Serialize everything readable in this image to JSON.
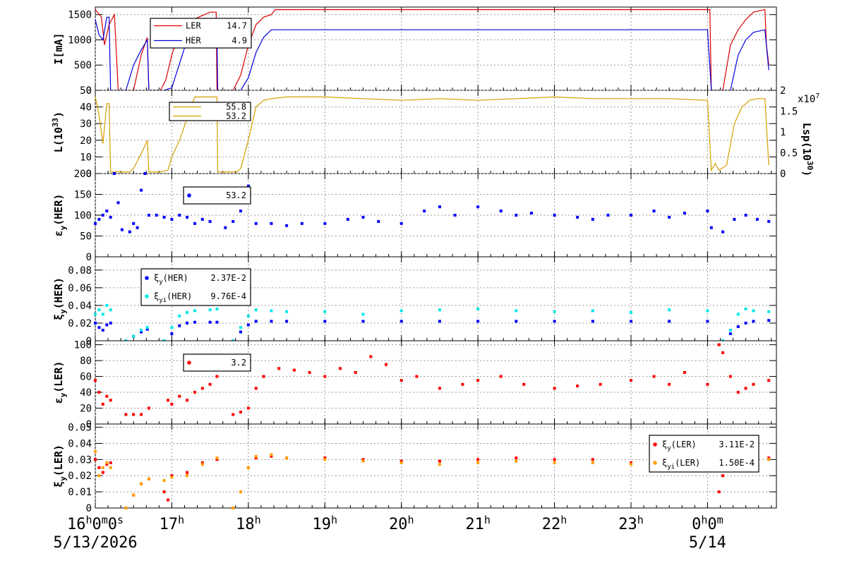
{
  "chart_data": [
    {
      "type": "line",
      "ylabel": "I[mA]",
      "ylim": [
        0,
        1650
      ],
      "yticks": [
        "0",
        "500",
        "1000",
        "1500"
      ],
      "ytick_values": [
        0,
        500,
        1000,
        1500
      ],
      "legend": [
        {
          "name": "LER",
          "value": "14.7",
          "color": "#dd0000"
        },
        {
          "name": "HER",
          "value": "4.9",
          "color": "#0000dd"
        }
      ],
      "series": [
        {
          "name": "LER",
          "color": "#dd0000",
          "x": [
            16.0,
            16.08,
            16.12,
            16.18,
            16.25,
            16.3,
            16.5,
            16.6,
            16.68,
            16.7,
            16.85,
            16.92,
            17.0,
            17.1,
            17.2,
            17.35,
            17.5,
            17.58,
            17.59,
            17.6,
            17.8,
            17.9,
            18.0,
            18.1,
            18.2,
            18.3,
            18.35,
            19.0,
            20.0,
            21.0,
            22.0,
            23.0,
            24.0,
            24.03,
            24.05,
            24.2,
            24.3,
            24.4,
            24.5,
            24.6,
            24.75,
            24.77,
            24.8
          ],
          "y": [
            1600,
            1450,
            900,
            1300,
            1500,
            0,
            0,
            700,
            1050,
            0,
            0,
            200,
            700,
            1150,
            1350,
            1450,
            1550,
            1550,
            0,
            0,
            0,
            300,
            900,
            1300,
            1450,
            1500,
            1600,
            1600,
            1600,
            1600,
            1600,
            1600,
            1600,
            1600,
            0,
            0,
            900,
            1200,
            1400,
            1550,
            1600,
            900,
            500
          ]
        },
        {
          "name": "HER",
          "color": "#0000dd",
          "x": [
            16.0,
            16.05,
            16.1,
            16.15,
            16.18,
            16.2,
            16.4,
            16.5,
            16.6,
            16.68,
            16.7,
            16.9,
            17.0,
            17.2,
            17.5,
            17.59,
            17.6,
            17.9,
            18.0,
            18.1,
            18.2,
            18.3,
            19.0,
            20.0,
            21.0,
            22.0,
            23.0,
            24.0,
            24.05,
            24.3,
            24.4,
            24.5,
            24.6,
            24.75,
            24.8
          ],
          "y": [
            1400,
            1100,
            1000,
            1450,
            1450,
            0,
            0,
            500,
            800,
            1000,
            0,
            0,
            50,
            1000,
            1100,
            1100,
            0,
            0,
            250,
            750,
            1050,
            1200,
            1200,
            1200,
            1200,
            1200,
            1200,
            1200,
            0,
            0,
            700,
            1000,
            1150,
            1200,
            400
          ]
        }
      ]
    },
    {
      "type": "line",
      "ylabel": "L(10",
      "ylabel_sup": "33",
      "ylabel_end": ")",
      "ylim": [
        0,
        50
      ],
      "yticks": [
        "0",
        "10",
        "20",
        "30",
        "40",
        "50"
      ],
      "ytick_values": [
        0,
        10,
        20,
        30,
        40,
        50
      ],
      "y2label": "Lsp(10",
      "y2label_sup": "30",
      "y2label_end": ")",
      "y2ticks": [
        "0",
        "0.5",
        "1",
        "1.5",
        "2"
      ],
      "y2tick_values": [
        0,
        0.5,
        1,
        1.5,
        2
      ],
      "y2_exponent": "x10",
      "y2_exponent_sup": "7",
      "legend": [
        {
          "name": "",
          "value": "55.8",
          "color": "#d4a000"
        },
        {
          "name": "",
          "value": "53.2",
          "color": "#d4a000"
        }
      ],
      "series": [
        {
          "name": "",
          "color": "#d4a000",
          "x": [
            16.0,
            16.05,
            16.1,
            16.15,
            16.18,
            16.2,
            16.45,
            16.5,
            16.6,
            16.68,
            16.7,
            16.85,
            16.95,
            17.0,
            17.1,
            17.2,
            17.3,
            17.5,
            17.59,
            17.6,
            17.85,
            17.9,
            18.0,
            18.1,
            18.2,
            18.3,
            18.5,
            19.0,
            19.5,
            20.0,
            20.5,
            21.0,
            21.5,
            22.0,
            22.5,
            23.0,
            23.5,
            24.0,
            24.05,
            24.1,
            24.15,
            24.25,
            24.35,
            24.45,
            24.55,
            24.65,
            24.75,
            24.8
          ],
          "y": [
            46,
            35,
            18,
            42,
            42,
            1,
            1,
            3,
            12,
            20,
            1,
            1,
            2,
            10,
            20,
            33,
            46,
            46,
            46,
            1,
            1,
            3,
            20,
            40,
            44,
            45,
            46,
            46,
            45,
            44,
            45,
            44,
            45,
            46,
            45,
            45,
            45,
            44,
            2,
            6,
            2,
            5,
            30,
            40,
            44,
            45,
            45,
            5
          ]
        }
      ]
    },
    {
      "type": "scatter",
      "ylabel": "ε",
      "ylabel_sub": "y",
      "ylabel_end": "(HER)",
      "ylim": [
        0,
        200
      ],
      "yticks": [
        "0",
        "50",
        "100",
        "150",
        "200"
      ],
      "ytick_values": [
        0,
        50,
        100,
        150,
        200
      ],
      "legend": [
        {
          "name": "",
          "value": "53.2",
          "color": "#0000ff"
        }
      ],
      "series": [
        {
          "name": "",
          "color": "#0000ff",
          "x": [
            16.0,
            16.05,
            16.1,
            16.15,
            16.2,
            16.25,
            16.3,
            16.35,
            16.45,
            16.5,
            16.55,
            16.6,
            16.65,
            16.7,
            16.8,
            16.9,
            17.0,
            17.1,
            17.2,
            17.3,
            17.4,
            17.5,
            17.7,
            17.8,
            17.9,
            18.0,
            18.1,
            18.3,
            18.5,
            18.7,
            19.0,
            19.3,
            19.5,
            19.7,
            20.0,
            20.3,
            20.5,
            20.7,
            21.0,
            21.3,
            21.5,
            21.7,
            22.0,
            22.3,
            22.5,
            22.7,
            23.0,
            23.3,
            23.5,
            23.7,
            24.0,
            24.05,
            24.2,
            24.35,
            24.5,
            24.65,
            24.8
          ],
          "y": [
            80,
            90,
            100,
            110,
            95,
            200,
            130,
            65,
            60,
            80,
            70,
            160,
            200,
            100,
            100,
            95,
            90,
            100,
            95,
            80,
            90,
            85,
            70,
            85,
            110,
            170,
            80,
            80,
            75,
            80,
            80,
            90,
            95,
            85,
            80,
            110,
            120,
            100,
            120,
            110,
            100,
            105,
            100,
            95,
            90,
            100,
            100,
            110,
            95,
            105,
            110,
            70,
            60,
            90,
            100,
            90,
            85
          ]
        }
      ]
    },
    {
      "type": "scatter",
      "ylabel": "ξ",
      "ylabel_sub": "y",
      "ylabel_end": "(HER)",
      "ylim": [
        0,
        0.095
      ],
      "yticks": [
        "0",
        "0.02",
        "0.04",
        "0.06",
        "0.08"
      ],
      "ytick_values": [
        0,
        0.02,
        0.04,
        0.06,
        0.08
      ],
      "legend": [
        {
          "name": "ξ",
          "name_sub": "y",
          "name_end": "(HER)",
          "value": "2.37E-2",
          "color": "#0000ff"
        },
        {
          "name": "ξ",
          "name_sub": "yi",
          "name_end": "(HER)",
          "value": "9.76E-4",
          "color": "#00e8e8"
        }
      ],
      "series": [
        {
          "name": "ξy(HER)",
          "color": "#0000ff",
          "x": [
            16.0,
            16.05,
            16.1,
            16.15,
            16.2,
            16.4,
            16.5,
            16.6,
            16.68,
            16.9,
            17.0,
            17.1,
            17.2,
            17.3,
            17.5,
            17.59,
            17.8,
            17.9,
            18.0,
            18.1,
            18.3,
            18.5,
            19.0,
            19.5,
            20.0,
            20.5,
            21.0,
            21.5,
            22.0,
            22.5,
            23.0,
            23.5,
            24.0,
            24.2,
            24.3,
            24.4,
            24.5,
            24.6,
            24.8
          ],
          "y": [
            0.02,
            0.015,
            0.012,
            0.018,
            0.02,
            0.0,
            0.005,
            0.01,
            0.013,
            0.0,
            0.008,
            0.017,
            0.02,
            0.021,
            0.021,
            0.021,
            0.0,
            0.01,
            0.018,
            0.022,
            0.022,
            0.022,
            0.022,
            0.022,
            0.022,
            0.022,
            0.022,
            0.022,
            0.022,
            0.022,
            0.022,
            0.022,
            0.022,
            0.0,
            0.008,
            0.016,
            0.02,
            0.022,
            0.023
          ]
        },
        {
          "name": "ξyi(HER)",
          "color": "#00e8e8",
          "x": [
            16.0,
            16.05,
            16.1,
            16.15,
            16.2,
            16.4,
            16.5,
            16.6,
            16.68,
            16.9,
            17.0,
            17.1,
            17.2,
            17.3,
            17.5,
            17.59,
            17.8,
            17.9,
            18.0,
            18.1,
            18.3,
            18.5,
            19.0,
            19.5,
            20.0,
            20.5,
            21.0,
            21.5,
            22.0,
            22.5,
            23.0,
            23.5,
            24.0,
            24.2,
            24.3,
            24.4,
            24.5,
            24.6,
            24.8
          ],
          "y": [
            0.03,
            0.035,
            0.03,
            0.04,
            0.035,
            0.0,
            0.005,
            0.012,
            0.015,
            0.0,
            0.015,
            0.028,
            0.032,
            0.034,
            0.035,
            0.036,
            0.0,
            0.015,
            0.028,
            0.035,
            0.034,
            0.033,
            0.033,
            0.03,
            0.034,
            0.035,
            0.036,
            0.034,
            0.033,
            0.034,
            0.032,
            0.035,
            0.034,
            0.0,
            0.012,
            0.03,
            0.036,
            0.034,
            0.033
          ]
        }
      ]
    },
    {
      "type": "scatter",
      "ylabel": "ε",
      "ylabel_sub": "y",
      "ylabel_end": "(LER)",
      "ylim": [
        0,
        105
      ],
      "yticks": [
        "0",
        "20",
        "40",
        "60",
        "80",
        "100"
      ],
      "ytick_values": [
        0,
        20,
        40,
        60,
        80,
        100
      ],
      "legend": [
        {
          "name": "",
          "value": "3.2",
          "color": "#ff0000"
        }
      ],
      "series": [
        {
          "name": "",
          "color": "#ff0000",
          "x": [
            16.0,
            16.05,
            16.1,
            16.15,
            16.2,
            16.4,
            16.5,
            16.6,
            16.7,
            16.95,
            17.0,
            17.1,
            17.2,
            17.3,
            17.4,
            17.5,
            17.59,
            17.8,
            17.9,
            18.0,
            18.1,
            18.2,
            18.4,
            18.6,
            18.8,
            19.0,
            19.2,
            19.4,
            19.6,
            19.8,
            20.0,
            20.2,
            20.5,
            20.8,
            21.0,
            21.3,
            21.6,
            22.0,
            22.3,
            22.6,
            23.0,
            23.3,
            23.5,
            23.7,
            24.0,
            24.15,
            24.2,
            24.3,
            24.4,
            24.5,
            24.6,
            24.8
          ],
          "y": [
            55,
            40,
            25,
            35,
            30,
            12,
            12,
            12,
            20,
            30,
            25,
            35,
            30,
            40,
            45,
            50,
            60,
            12,
            15,
            20,
            45,
            60,
            70,
            68,
            65,
            60,
            70,
            65,
            85,
            75,
            55,
            60,
            45,
            50,
            55,
            60,
            50,
            45,
            48,
            50,
            55,
            60,
            50,
            65,
            50,
            100,
            90,
            60,
            40,
            45,
            50,
            55
          ]
        }
      ]
    },
    {
      "type": "scatter",
      "ylabel": "ξ",
      "ylabel_sub": "y",
      "ylabel_end": "(LER)",
      "ylim": [
        0,
        0.052
      ],
      "yticks": [
        "0",
        "0.01",
        "0.02",
        "0.03",
        "0.04",
        "0.05"
      ],
      "ytick_values": [
        0,
        0.01,
        0.02,
        0.03,
        0.04,
        0.05
      ],
      "legend": [
        {
          "name": "ξ",
          "name_sub": "y",
          "name_end": "(LER)",
          "value": "3.11E-2",
          "color": "#ff0000"
        },
        {
          "name": "ξ",
          "name_sub": "yi",
          "name_end": "(LER)",
          "value": "1.50E-4",
          "color": "#ffa000"
        }
      ],
      "series": [
        {
          "name": "ξy(LER)",
          "color": "#ff0000",
          "x": [
            16.0,
            16.05,
            16.1,
            16.15,
            16.2,
            16.4,
            16.5,
            16.6,
            16.7,
            16.9,
            16.95,
            17.0,
            17.2,
            17.4,
            17.59,
            17.8,
            17.9,
            18.0,
            18.1,
            18.3,
            18.5,
            19.0,
            19.5,
            20.0,
            20.5,
            21.0,
            21.5,
            22.0,
            22.5,
            23.0,
            23.5,
            24.0,
            24.15,
            24.2,
            24.3,
            24.5,
            24.8
          ],
          "y": [
            0.03,
            0.025,
            0.022,
            0.027,
            0.028,
            0.0,
            0.008,
            0.015,
            0.018,
            0.01,
            0.005,
            0.02,
            0.022,
            0.028,
            0.03,
            0.0,
            0.01,
            0.025,
            0.031,
            0.032,
            0.031,
            0.031,
            0.03,
            0.029,
            0.029,
            0.03,
            0.031,
            0.03,
            0.03,
            0.028,
            0.03,
            0.029,
            0.01,
            0.02,
            0.03,
            0.031,
            0.031
          ]
        },
        {
          "name": "ξyi(LER)",
          "color": "#ffa000",
          "x": [
            16.0,
            16.05,
            16.1,
            16.15,
            16.2,
            16.4,
            16.5,
            16.6,
            16.7,
            16.9,
            17.0,
            17.2,
            17.4,
            17.59,
            17.8,
            17.9,
            18.0,
            18.1,
            18.3,
            18.5,
            19.0,
            19.5,
            20.0,
            20.5,
            21.0,
            21.5,
            22.0,
            22.5,
            23.0,
            23.5,
            24.0,
            24.2,
            24.3,
            24.5,
            24.8
          ],
          "y": [
            0.035,
            0.02,
            0.025,
            0.028,
            0.025,
            0.0,
            0.008,
            0.015,
            0.018,
            0.017,
            0.019,
            0.02,
            0.027,
            0.031,
            0.0,
            0.01,
            0.025,
            0.032,
            0.033,
            0.031,
            0.03,
            0.029,
            0.028,
            0.027,
            0.028,
            0.029,
            0.028,
            0.028,
            0.027,
            0.029,
            0.03,
            0.033,
            0.035,
            0.031,
            0.03
          ]
        }
      ]
    }
  ],
  "x_axis": {
    "range_hours": [
      16.0,
      24.9
    ],
    "tick_hours": [
      16,
      17,
      18,
      19,
      20,
      21,
      22,
      23,
      24
    ],
    "tick_labels": [
      {
        "main": "16",
        "sup": "h",
        "rest": "0",
        "rest_sup": "m",
        "rest2": "0",
        "rest2_sup": "s"
      },
      {
        "main": "17",
        "sup": "h"
      },
      {
        "main": "18",
        "sup": "h"
      },
      {
        "main": "19",
        "sup": "h"
      },
      {
        "main": "20",
        "sup": "h"
      },
      {
        "main": "21",
        "sup": "h"
      },
      {
        "main": "22",
        "sup": "h"
      },
      {
        "main": "23",
        "sup": "h"
      },
      {
        "main": "0",
        "sup": "h",
        "rest": "0",
        "rest_sup": "m"
      }
    ],
    "date_labels": [
      "5/13/2026",
      "5/14"
    ]
  }
}
